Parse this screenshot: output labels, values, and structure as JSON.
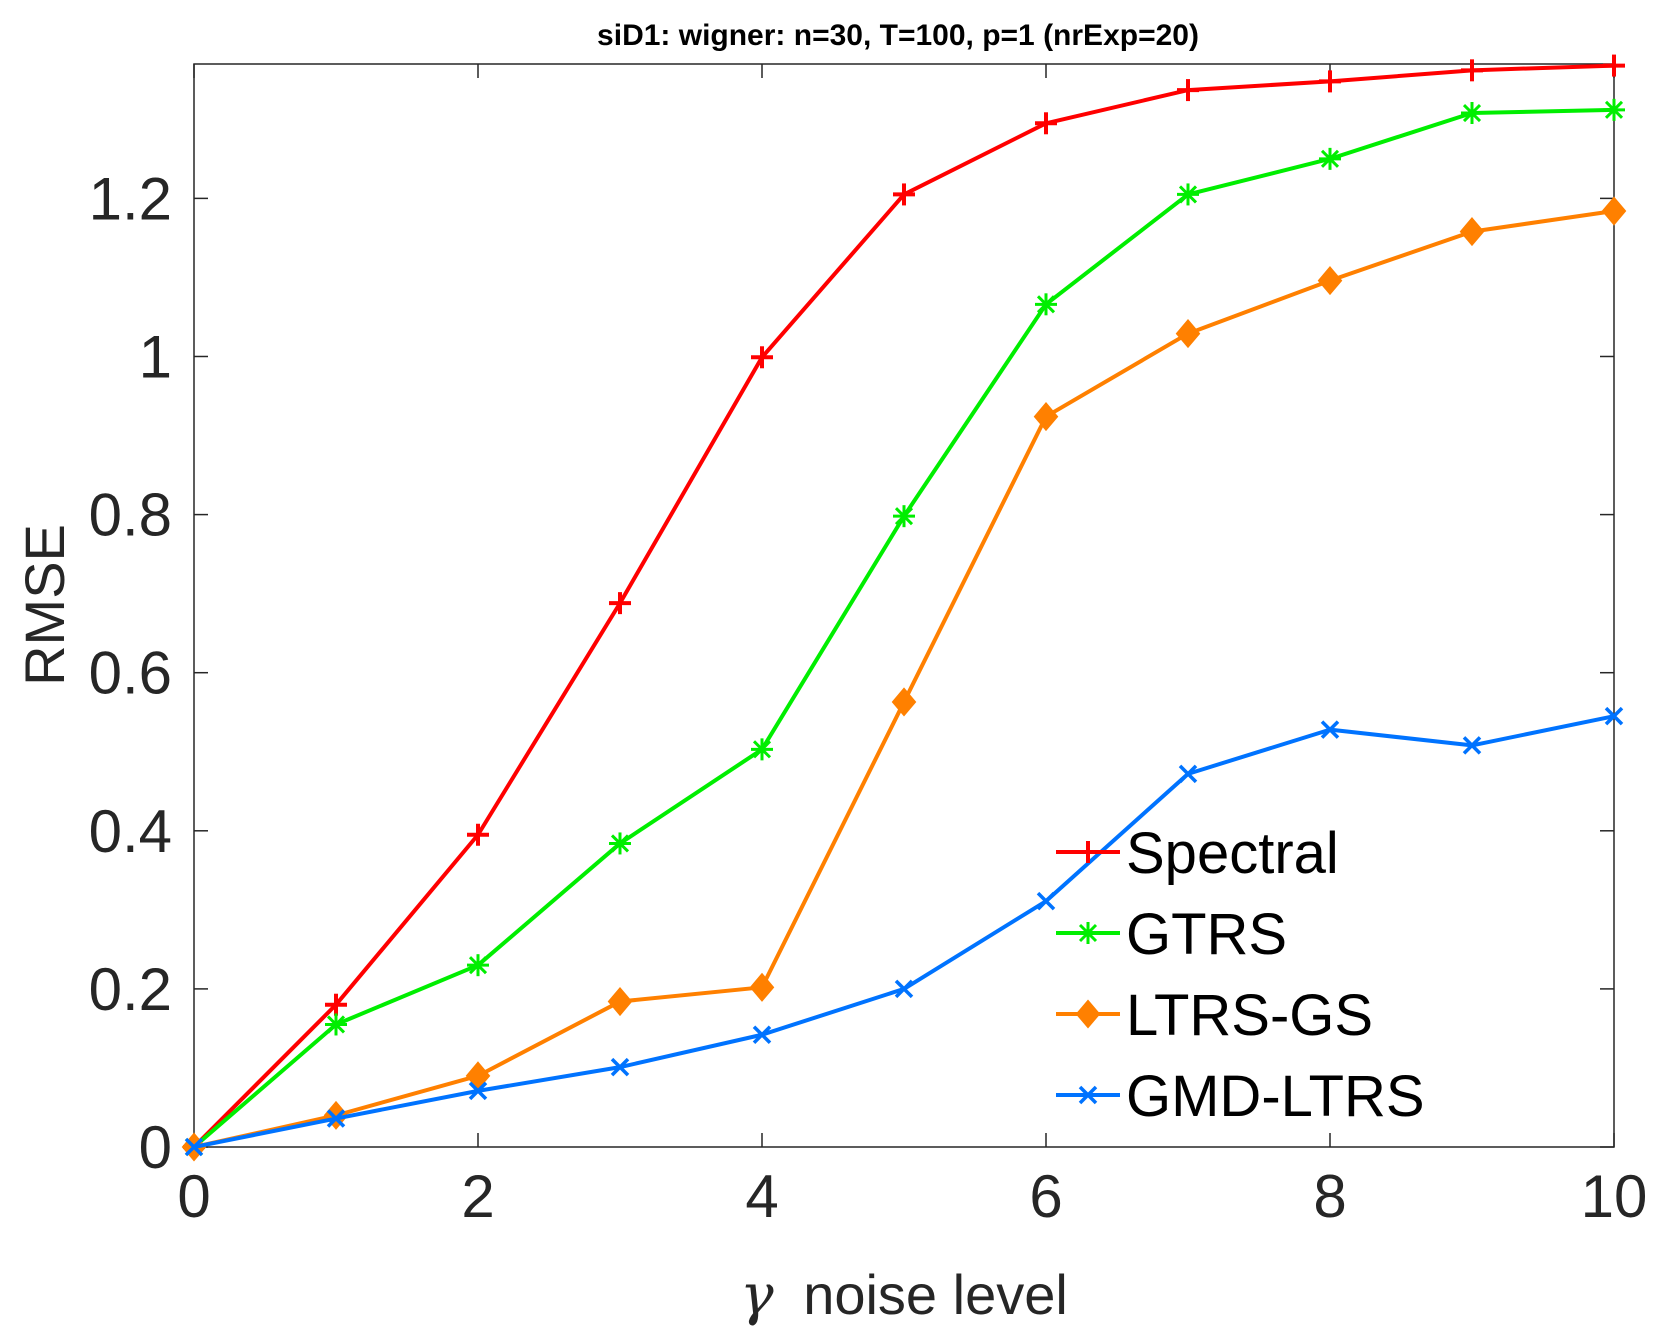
{
  "chart_data": {
    "type": "line",
    "title": "siD1: wigner: n=30, T=100, p=1 (nrExp=20)",
    "xlabel_symbol": "γ",
    "xlabel": "noise level",
    "ylabel": "RMSE",
    "xlim": [
      0,
      10
    ],
    "ylim": [
      0,
      1.37
    ],
    "xticks": [
      0,
      2,
      4,
      6,
      8,
      10
    ],
    "xtick_labels": [
      "0",
      "2",
      "4",
      "6",
      "8",
      "10"
    ],
    "yticks": [
      0,
      0.2,
      0.4,
      0.6,
      0.8,
      1.0,
      1.2
    ],
    "ytick_labels": [
      "0",
      "0.2",
      "0.4",
      "0.6",
      "0.8",
      "1",
      "1.2"
    ],
    "grid": false,
    "legend_position": "bottom-right",
    "x": [
      0,
      1,
      2,
      3,
      4,
      5,
      6,
      7,
      8,
      9,
      10
    ],
    "series": [
      {
        "name": "Spectral",
        "color": "#ff0000",
        "marker": "plus",
        "values": [
          0.0,
          0.18,
          0.395,
          0.688,
          0.999,
          1.205,
          1.295,
          1.337,
          1.348,
          1.362,
          1.368
        ]
      },
      {
        "name": "GTRS",
        "color": "#00ee00",
        "marker": "asterisk",
        "values": [
          0.0,
          0.155,
          0.23,
          0.384,
          0.503,
          0.798,
          1.066,
          1.205,
          1.25,
          1.308,
          1.312
        ]
      },
      {
        "name": "LTRS-GS",
        "color": "#ff8000",
        "marker": "diamond",
        "values": [
          0.0,
          0.04,
          0.09,
          0.184,
          0.202,
          0.563,
          0.924,
          1.029,
          1.096,
          1.158,
          1.184
        ]
      },
      {
        "name": "GMD-LTRS",
        "color": "#0073ff",
        "marker": "x",
        "values": [
          0.0,
          0.036,
          0.071,
          0.101,
          0.142,
          0.2,
          0.311,
          0.472,
          0.528,
          0.508,
          0.545
        ]
      }
    ]
  }
}
